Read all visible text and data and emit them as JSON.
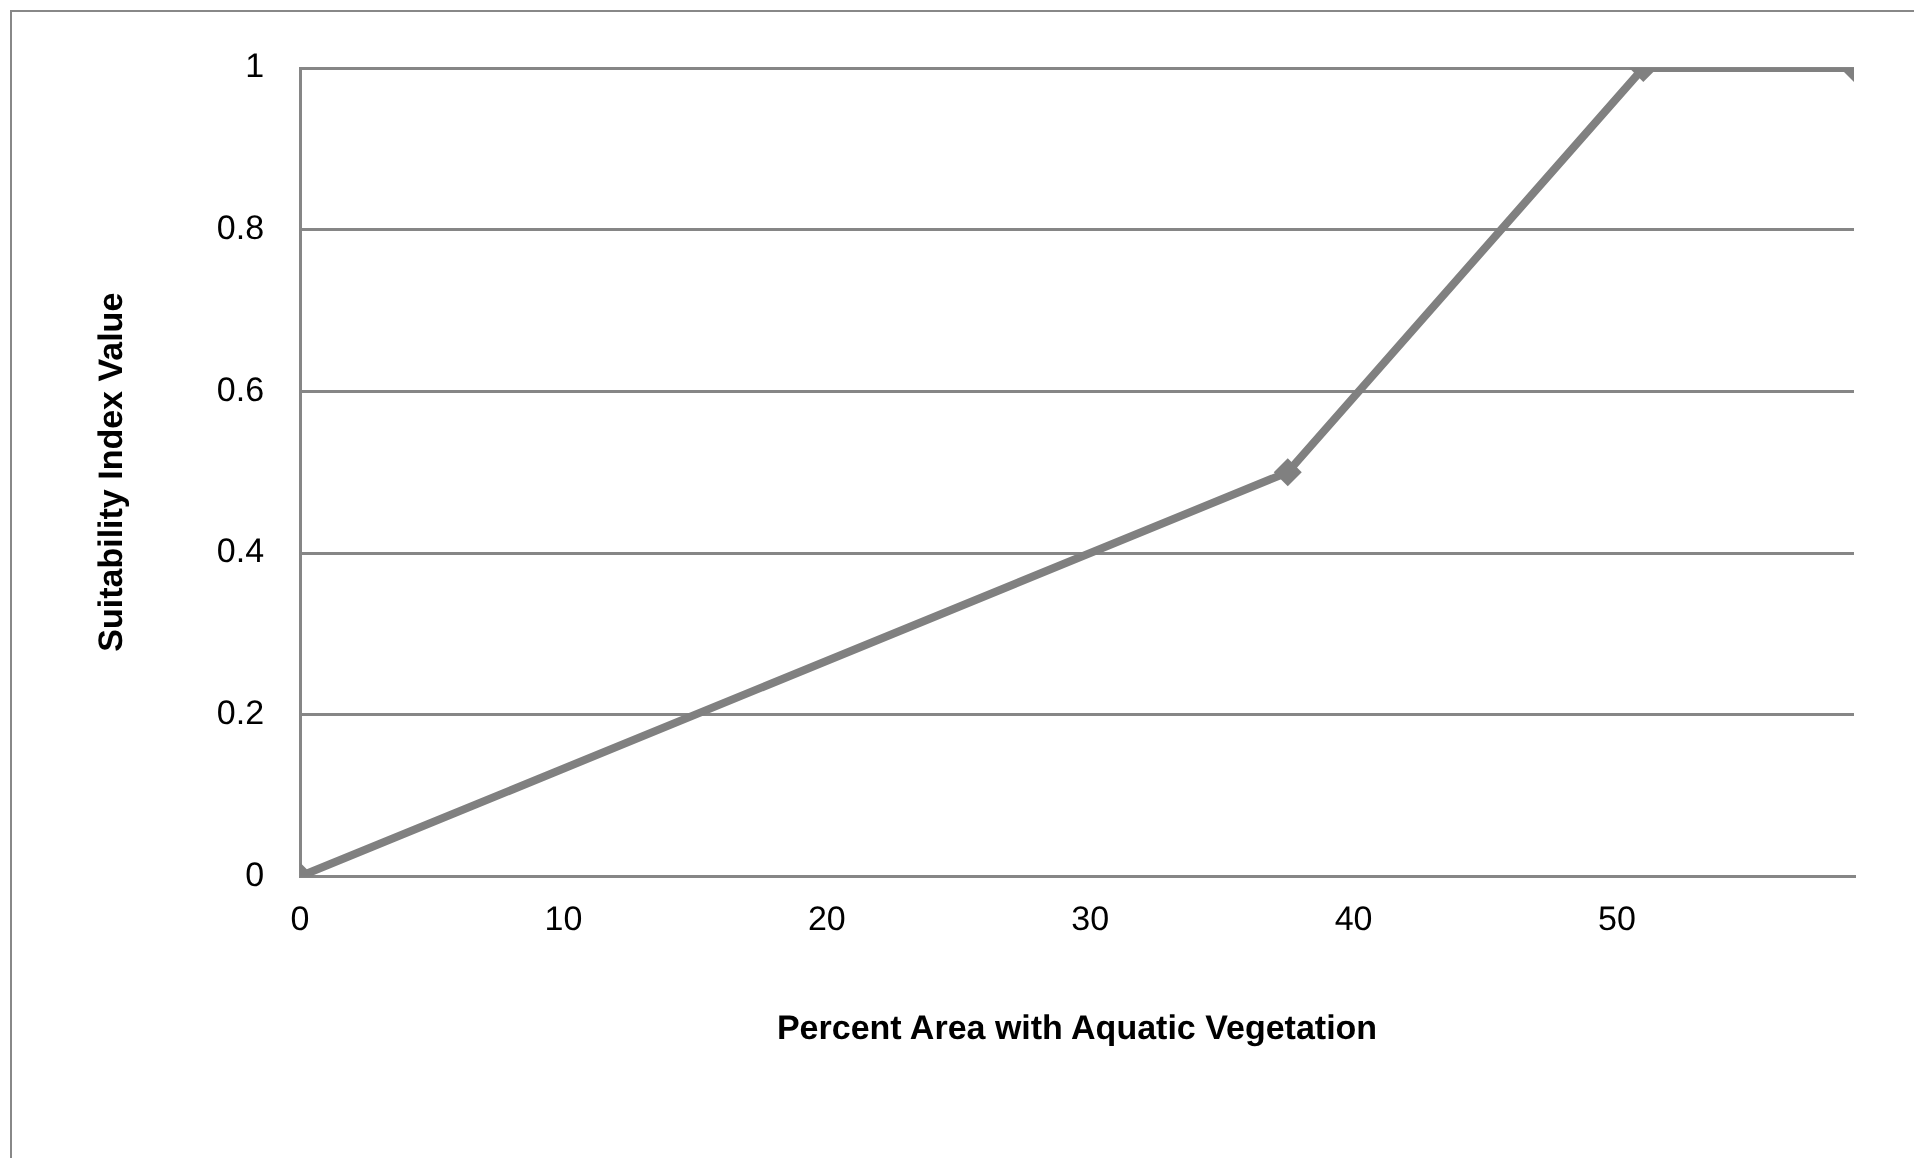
{
  "chart_data": {
    "type": "line",
    "xlabel": "Percent Area with Aquatic Vegetation",
    "ylabel": "Suitability Index Value",
    "x": [
      0,
      37.5,
      51,
      59
    ],
    "series": [
      {
        "color": "#808080",
        "values": [
          0,
          0.5,
          1,
          1
        ]
      }
    ],
    "xlim": [
      0,
      59
    ],
    "xticks": [
      0,
      10,
      20,
      30,
      40,
      50
    ],
    "ylim": [
      0,
      1
    ],
    "yticks": [
      0,
      0.2,
      0.4,
      0.6,
      0.8,
      1
    ],
    "grid": "y",
    "legend": false,
    "marker": "diamond",
    "line_style": "solid"
  }
}
